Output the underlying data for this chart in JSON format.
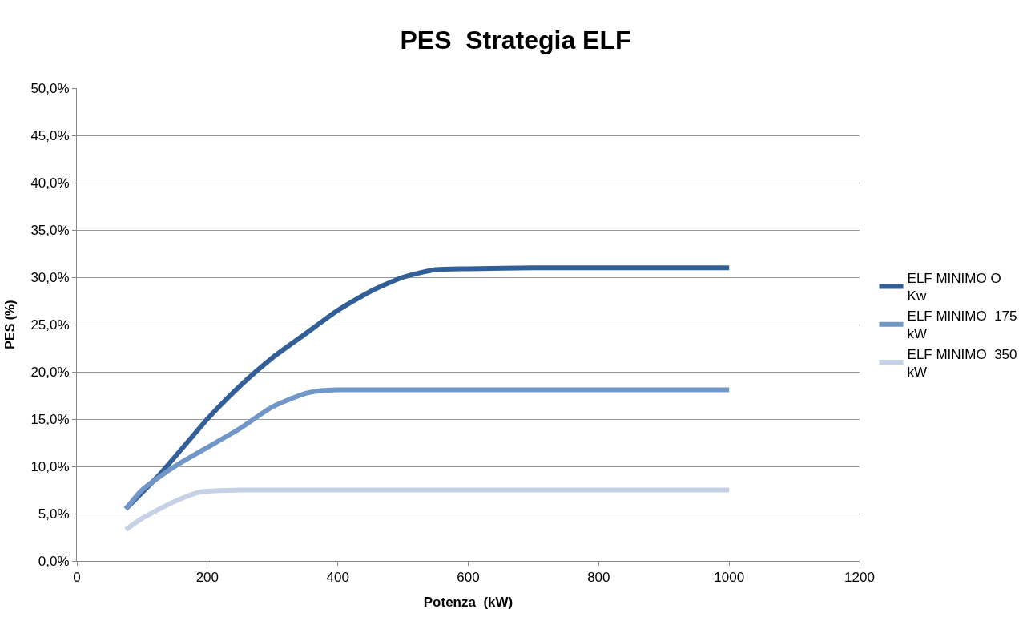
{
  "chart_data": {
    "type": "line",
    "title": "PES  Strategia ELF",
    "xlabel": "Potenza  (kW)",
    "ylabel": "PES (%)",
    "xlim": [
      0,
      1200
    ],
    "xticks": [
      0,
      200,
      400,
      600,
      800,
      1000,
      1200
    ],
    "ylim": [
      0,
      50
    ],
    "yticks": [
      {
        "value": 0,
        "label": "0,0%"
      },
      {
        "value": 5,
        "label": "5,0%"
      },
      {
        "value": 10,
        "label": "10,0%"
      },
      {
        "value": 15,
        "label": "15,0%"
      },
      {
        "value": 20,
        "label": "20,0%"
      },
      {
        "value": 25,
        "label": "25,0%"
      },
      {
        "value": 30,
        "label": "30,0%"
      },
      {
        "value": 35,
        "label": "35,0%"
      },
      {
        "value": 40,
        "label": "40,0%"
      },
      {
        "value": 45,
        "label": "45,0%"
      },
      {
        "value": 50,
        "label": "50,0%"
      }
    ],
    "grid": "y",
    "legend": "right",
    "marker": "none",
    "line_style": "solid",
    "series": [
      {
        "name": "ELF MINIMO O Kw",
        "color": "#335f98",
        "x": [
          75,
          125,
          175,
          200,
          250,
          300,
          350,
          400,
          450,
          500,
          550,
          600,
          700,
          1000
        ],
        "values": [
          5.5,
          9,
          13,
          15,
          18.5,
          21.5,
          24,
          26.5,
          28.5,
          30,
          30.8,
          30.9,
          31,
          31
        ]
      },
      {
        "name": "ELF MINIMO  175 kW",
        "color": "#7196c8",
        "x": [
          75,
          100,
          150,
          200,
          250,
          300,
          350,
          375,
          400,
          1000
        ],
        "values": [
          5.5,
          7.5,
          10,
          12,
          14,
          16.3,
          17.7,
          18,
          18.1,
          18.1
        ]
      },
      {
        "name": "ELF MINIMO  350 kW",
        "color": "#c5d1e5",
        "x": [
          75,
          100,
          150,
          190,
          250,
          1000
        ],
        "values": [
          3.3,
          4.5,
          6.3,
          7.3,
          7.5,
          7.5
        ]
      }
    ]
  }
}
